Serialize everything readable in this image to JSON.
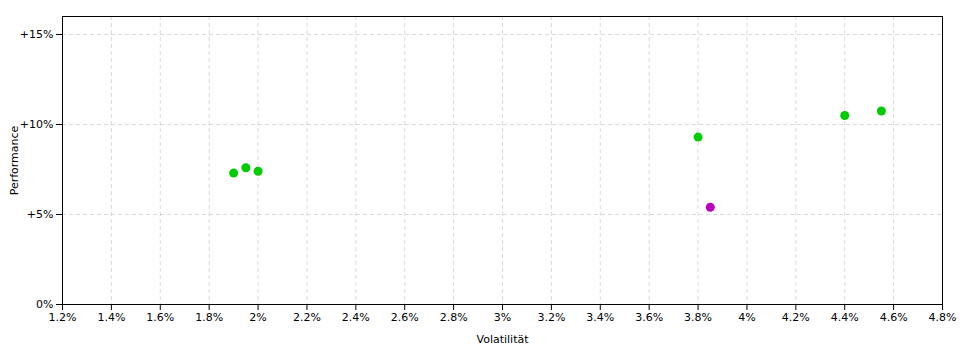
{
  "chart_data": {
    "type": "scatter",
    "xlabel": "Volatilität",
    "ylabel": "Performance",
    "xlim": [
      0.012,
      0.048
    ],
    "ylim": [
      0,
      0.16
    ],
    "xticks": [
      {
        "value": 0.012,
        "label": "1.2%"
      },
      {
        "value": 0.014,
        "label": "1.4%"
      },
      {
        "value": 0.016,
        "label": "1.6%"
      },
      {
        "value": 0.018,
        "label": "1.8%"
      },
      {
        "value": 0.02,
        "label": "2%"
      },
      {
        "value": 0.022,
        "label": "2.2%"
      },
      {
        "value": 0.024,
        "label": "2.4%"
      },
      {
        "value": 0.026,
        "label": "2.6%"
      },
      {
        "value": 0.028,
        "label": "2.8%"
      },
      {
        "value": 0.03,
        "label": "3%"
      },
      {
        "value": 0.032,
        "label": "3.2%"
      },
      {
        "value": 0.034,
        "label": "3.4%"
      },
      {
        "value": 0.036,
        "label": "3.6%"
      },
      {
        "value": 0.038,
        "label": "3.8%"
      },
      {
        "value": 0.04,
        "label": "4%"
      },
      {
        "value": 0.042,
        "label": "4.2%"
      },
      {
        "value": 0.044,
        "label": "4.4%"
      },
      {
        "value": 0.046,
        "label": "4.6%"
      },
      {
        "value": 0.048,
        "label": "4.8%"
      }
    ],
    "yticks": [
      {
        "value": 0,
        "label": "0%"
      },
      {
        "value": 0.05,
        "label": "+5%"
      },
      {
        "value": 0.1,
        "label": "+10%"
      },
      {
        "value": 0.15,
        "label": "+15%"
      }
    ],
    "grid": true,
    "series": [
      {
        "color": "#00cc00",
        "x": [
          0.019,
          0.0195,
          0.02,
          0.038,
          0.044,
          0.0455
        ],
        "values": [
          0.073,
          0.076,
          0.074,
          0.093,
          0.105,
          0.1075
        ]
      },
      {
        "color": "#bb00bb",
        "x": [
          0.0385
        ],
        "values": [
          0.054
        ]
      }
    ]
  }
}
